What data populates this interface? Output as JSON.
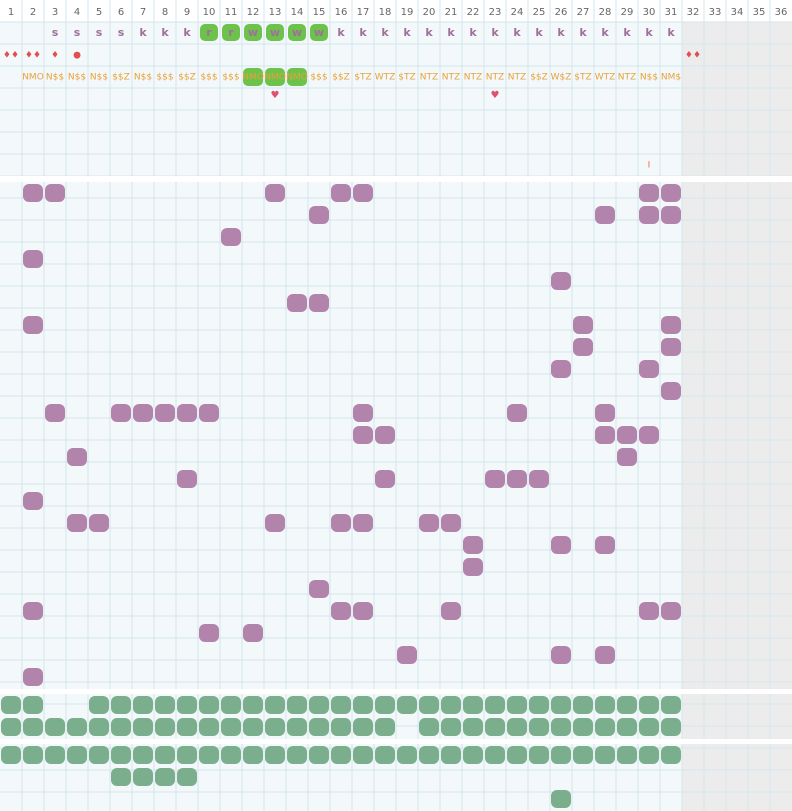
{
  "columns": [
    1,
    2,
    3,
    4,
    5,
    6,
    7,
    8,
    9,
    10,
    11,
    12,
    13,
    14,
    15,
    16,
    17,
    18,
    19,
    20,
    21,
    22,
    23,
    24,
    25,
    26,
    27,
    28,
    29,
    30,
    31,
    32,
    33,
    34,
    35,
    36
  ],
  "row_letters": [
    null,
    null,
    "s",
    "s",
    "s",
    "s",
    "k",
    "k",
    "k",
    "r",
    "r",
    "w",
    "w",
    "w",
    "w",
    "k",
    "k",
    "k",
    "k",
    "k",
    "k",
    "k",
    "k",
    "k",
    "k",
    "k",
    "k",
    "k",
    "k",
    "k",
    "k"
  ],
  "letter_highlight": [
    10,
    11,
    12,
    13,
    14,
    15
  ],
  "drops": [
    {
      "col": 1,
      "text": "♦♦"
    },
    {
      "col": 2,
      "text": "♦♦"
    },
    {
      "col": 3,
      "text": "♦"
    },
    {
      "col": 4,
      "text": "●"
    },
    {
      "col": 32,
      "text": "♦♦"
    }
  ],
  "codes": [
    null,
    "NMO",
    "N$$",
    "N$$",
    "N$$",
    "$$Z",
    "N$$",
    "$$$",
    "$$Z",
    "$$$",
    "$$$",
    "NMO",
    "NMO",
    "NMO",
    "$$$",
    "$$Z",
    "$TZ",
    "WTZ",
    "$TZ",
    "NTZ",
    "NTZ",
    "NTZ",
    "NTZ",
    "NTZ",
    "$$Z",
    "W$Z",
    "$TZ",
    "WTZ",
    "NTZ",
    "N$$",
    "NM$"
  ],
  "code_highlight": [
    12,
    13,
    14
  ],
  "hearts": [
    13,
    23
  ],
  "marker": {
    "col": 30,
    "text": "I"
  },
  "purple_rows": [
    [
      2,
      3,
      13,
      16,
      17,
      30,
      31
    ],
    [
      15,
      28,
      30,
      31
    ],
    [
      11
    ],
    [
      2
    ],
    [
      26
    ],
    [
      14,
      15
    ],
    [
      2,
      27,
      31
    ],
    [
      27,
      31
    ],
    [
      26,
      30
    ],
    [
      31
    ],
    [
      3,
      6,
      7,
      8,
      9,
      10,
      17,
      24,
      28
    ],
    [
      17,
      18,
      28,
      29,
      30
    ],
    [
      4,
      29
    ],
    [
      9,
      18,
      23,
      24,
      25
    ],
    [
      2
    ],
    [
      4,
      5,
      13,
      16,
      17,
      20,
      21
    ],
    [
      22,
      26,
      28
    ],
    [
      22
    ],
    [
      15
    ],
    [
      2,
      16,
      17,
      21,
      30,
      31
    ],
    [
      10,
      12
    ],
    [
      19,
      26,
      28
    ],
    [
      2
    ]
  ],
  "green_rows": [
    [
      1,
      2,
      5,
      6,
      7,
      8,
      9,
      10,
      11,
      12,
      13,
      14,
      15,
      16,
      17,
      18,
      19,
      20,
      21,
      22,
      23,
      24,
      25,
      26,
      27,
      28,
      29,
      30,
      31
    ],
    [
      1,
      2,
      3,
      4,
      5,
      6,
      7,
      8,
      9,
      10,
      11,
      12,
      13,
      14,
      15,
      16,
      17,
      18,
      20,
      21,
      22,
      23,
      24,
      25,
      26,
      27,
      28,
      29,
      30,
      31
    ]
  ],
  "green_rows_lower": [
    [
      1,
      2,
      3,
      4,
      5,
      6,
      7,
      8,
      9,
      10,
      11,
      12,
      13,
      14,
      15,
      16,
      17,
      18,
      19,
      20,
      21,
      22,
      23,
      24,
      25,
      26,
      27,
      28,
      29,
      30,
      31
    ],
    [
      6,
      7,
      8,
      9
    ],
    [
      26
    ]
  ]
}
